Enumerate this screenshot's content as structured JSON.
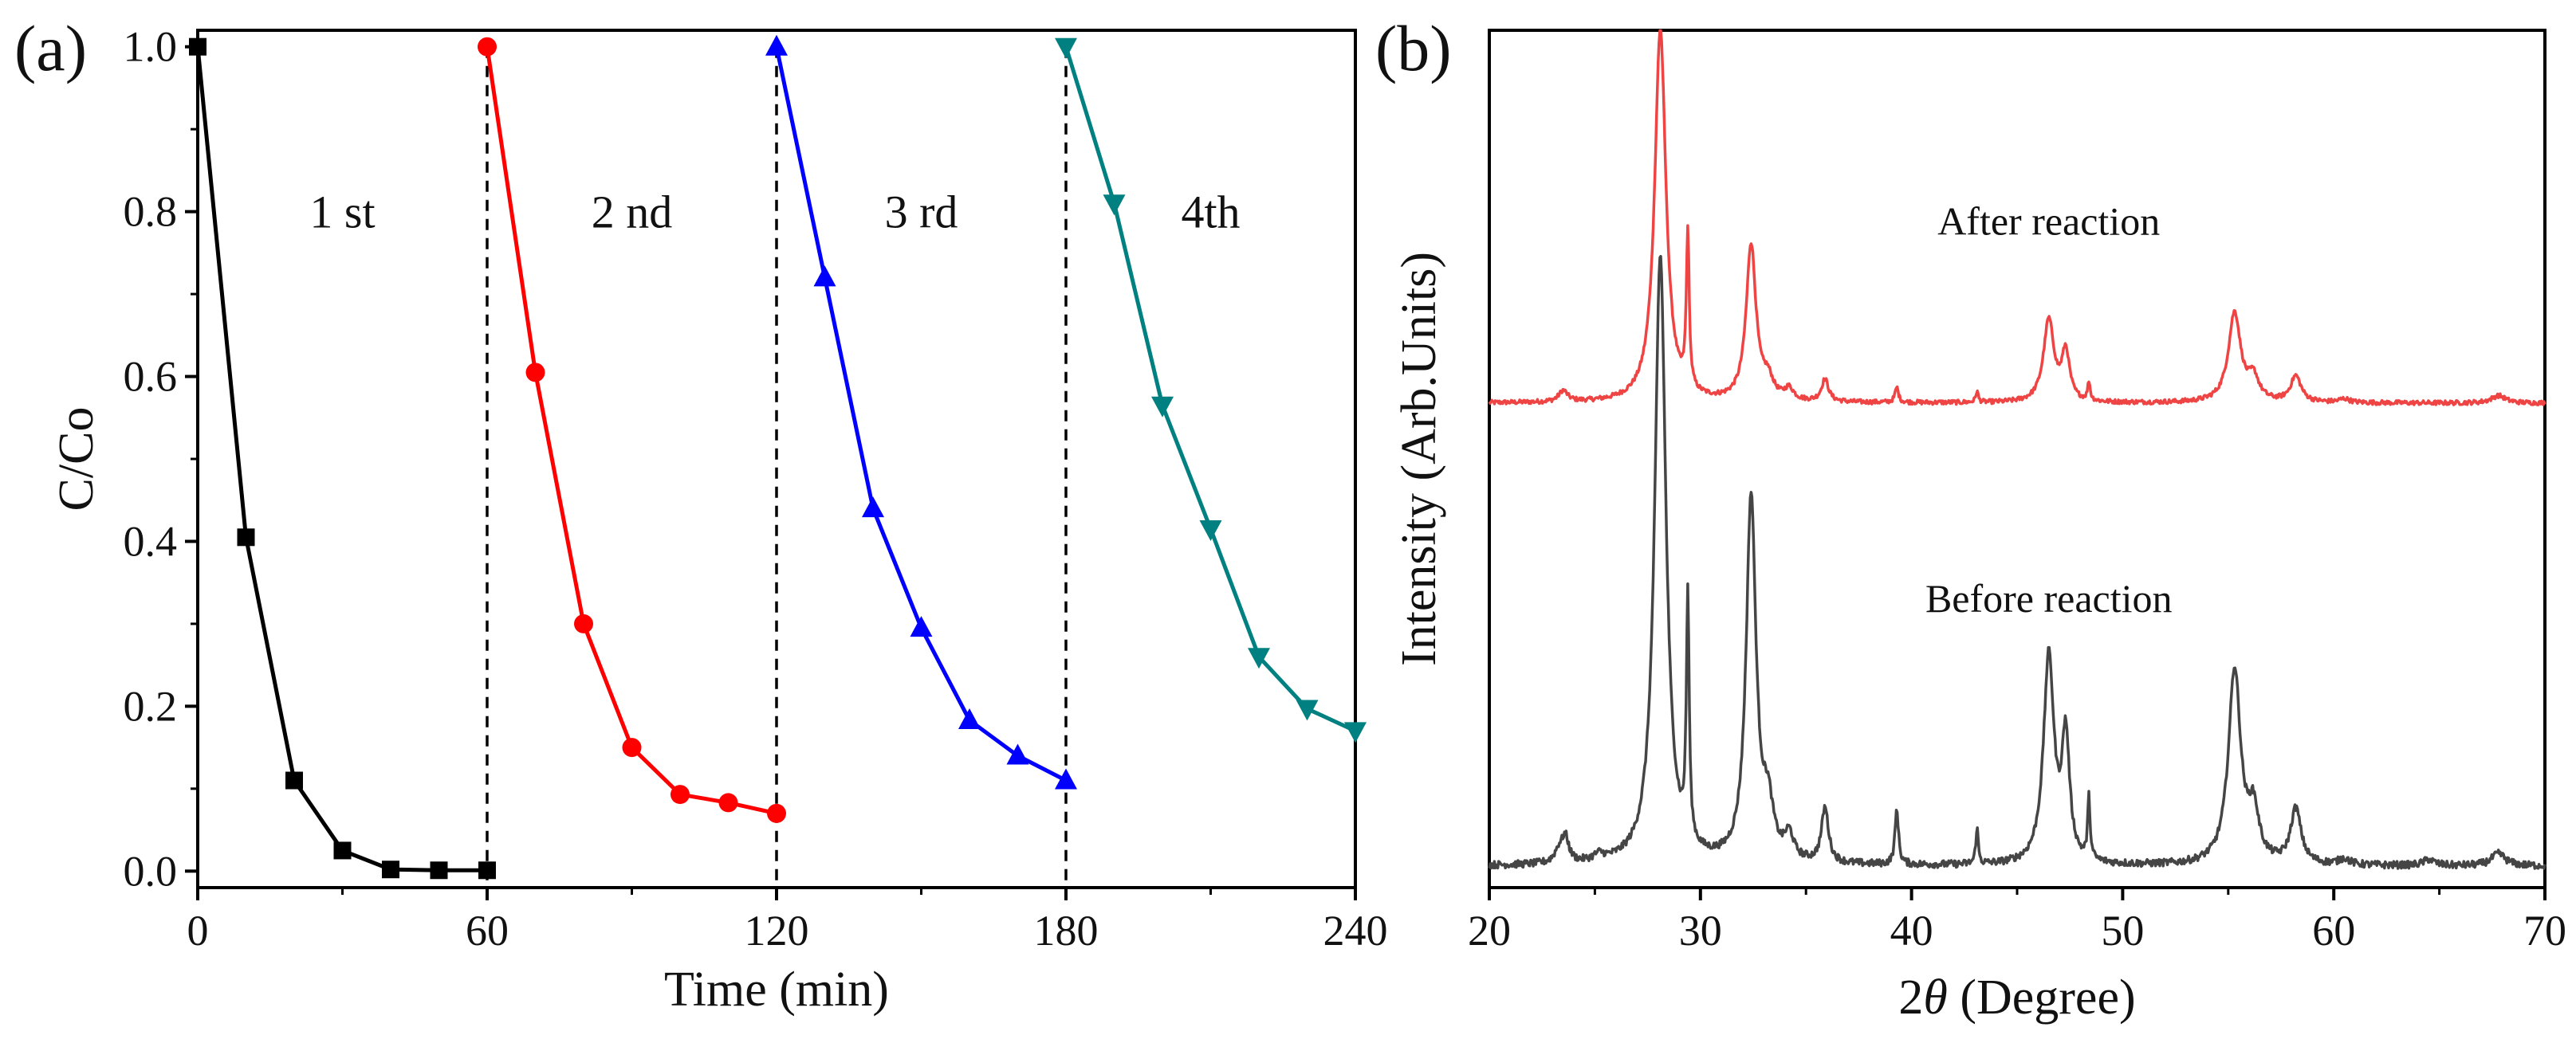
{
  "chart_data": [
    {
      "panel_label": "(a)",
      "type": "line",
      "xlabel": "Time (min)",
      "ylabel": "C/Co",
      "xlim": [
        0,
        240
      ],
      "ylim": [
        -0.02,
        1.02
      ],
      "xticks": [
        "0",
        "60",
        "120",
        "180",
        "240"
      ],
      "yticks": [
        "0.0",
        "0.2",
        "0.4",
        "0.6",
        "0.8",
        "1.0"
      ],
      "grid": false,
      "dividers_x": [
        60,
        120,
        180
      ],
      "cycle_labels": [
        {
          "text": "1 st",
          "x": 30,
          "y": 0.8
        },
        {
          "text": "2 nd",
          "x": 90,
          "y": 0.8
        },
        {
          "text": "3 rd",
          "x": 150,
          "y": 0.8
        },
        {
          "text": "4th",
          "x": 210,
          "y": 0.8
        }
      ],
      "series": [
        {
          "color": "#000000",
          "marker": "square",
          "x": [
            0,
            10,
            20,
            30,
            40,
            50,
            60
          ],
          "y": [
            1.0,
            0.405,
            0.11,
            0.025,
            0.002,
            0.001,
            0.001
          ]
        },
        {
          "color": "#ff0000",
          "marker": "circle",
          "x": [
            60,
            70,
            80,
            90,
            100,
            110,
            120
          ],
          "y": [
            1.0,
            0.605,
            0.3,
            0.15,
            0.093,
            0.083,
            0.07
          ]
        },
        {
          "color": "#0000ff",
          "marker": "triangle-up",
          "x": [
            120,
            130,
            140,
            150,
            160,
            170,
            180
          ],
          "y": [
            1.0,
            0.72,
            0.44,
            0.295,
            0.183,
            0.14,
            0.11
          ]
        },
        {
          "color": "#008080",
          "marker": "triangle-down",
          "x": [
            180,
            190,
            200,
            210,
            220,
            230,
            240
          ],
          "y": [
            1.0,
            0.81,
            0.565,
            0.415,
            0.26,
            0.197,
            0.17
          ]
        }
      ]
    },
    {
      "panel_label": "(b)",
      "type": "line",
      "xlabel_prefix": "2",
      "xlabel_symbol": "θ",
      "xlabel_suffix": " (Degree)",
      "ylabel": "Intensity (Arb.Units)",
      "xlim": [
        20,
        70
      ],
      "ylim": [
        0,
        1
      ],
      "xticks": [
        "20",
        "30",
        "40",
        "50",
        "60",
        "70"
      ],
      "grid": false,
      "series": [
        {
          "label": "After reaction",
          "color": "#ef4444",
          "label_x": 46.5,
          "label_y": 0.78,
          "baseline": 0.565,
          "scale": 0.435,
          "peaks": [
            [
              23.5,
              0.03,
              0.25
            ],
            [
              28.1,
              1.0,
              0.32
            ],
            [
              29.4,
              0.42,
              0.08
            ],
            [
              32.4,
              0.42,
              0.28
            ],
            [
              33.2,
              0.05,
              0.3
            ],
            [
              34.2,
              0.03,
              0.25
            ],
            [
              35.9,
              0.06,
              0.2
            ],
            [
              39.3,
              0.04,
              0.1
            ],
            [
              43.1,
              0.03,
              0.07
            ],
            [
              46.5,
              0.22,
              0.3
            ],
            [
              47.3,
              0.13,
              0.22
            ],
            [
              48.4,
              0.05,
              0.07
            ],
            [
              55.3,
              0.24,
              0.35
            ],
            [
              56.2,
              0.06,
              0.3
            ],
            [
              58.2,
              0.07,
              0.3
            ],
            [
              60.5,
              0.01,
              0.3
            ],
            [
              67.8,
              0.02,
              0.4
            ]
          ]
        },
        {
          "label": "Before reaction",
          "color": "#454545",
          "label_x": 46.5,
          "label_y": 0.34,
          "baseline": 0.025,
          "scale": 0.71,
          "peaks": [
            [
              23.3,
              0.02,
              0.25
            ],
            [
              23.6,
              0.04,
              0.2
            ],
            [
              25.2,
              0.01,
              0.3
            ],
            [
              28.1,
              1.0,
              0.32
            ],
            [
              29.4,
              0.4,
              0.08
            ],
            [
              32.4,
              0.6,
              0.28
            ],
            [
              33.2,
              0.08,
              0.3
            ],
            [
              34.2,
              0.04,
              0.25
            ],
            [
              35.9,
              0.09,
              0.2
            ],
            [
              39.3,
              0.09,
              0.1
            ],
            [
              43.1,
              0.06,
              0.07
            ],
            [
              46.5,
              0.34,
              0.3
            ],
            [
              47.3,
              0.2,
              0.22
            ],
            [
              48.4,
              0.1,
              0.07
            ],
            [
              55.3,
              0.32,
              0.35
            ],
            [
              56.2,
              0.08,
              0.3
            ],
            [
              58.2,
              0.09,
              0.3
            ],
            [
              60.5,
              0.01,
              0.3
            ],
            [
              64.5,
              0.01,
              0.3
            ],
            [
              67.8,
              0.02,
              0.4
            ]
          ]
        }
      ]
    }
  ]
}
